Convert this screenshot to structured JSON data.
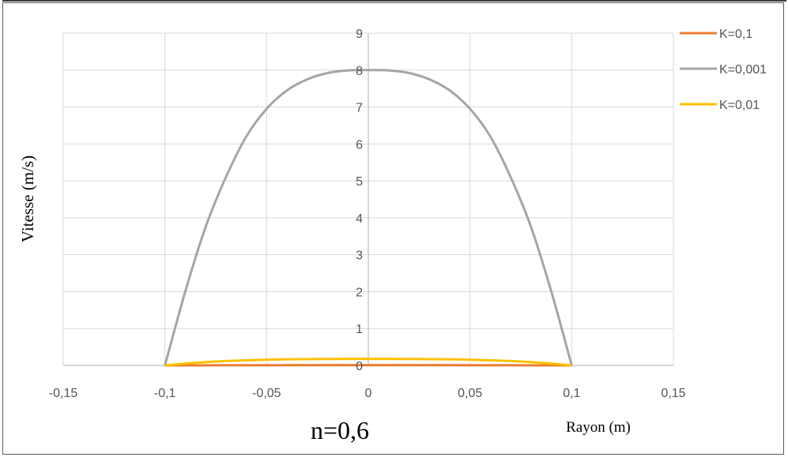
{
  "chart_data": {
    "type": "line",
    "title": "",
    "annotation": "n=0,6",
    "xlabel": "Rayon (m)",
    "ylabel": "Vitesse (m/s)",
    "xlim": [
      -0.15,
      0.15
    ],
    "ylim": [
      0,
      9
    ],
    "x_ticks": [
      -0.15,
      -0.1,
      -0.05,
      0,
      0.05,
      0.1,
      0.15
    ],
    "x_tick_labels": [
      "-0,15",
      "-0,1",
      "-0,05",
      "0",
      "0,05",
      "0,1",
      "0,15"
    ],
    "y_ticks": [
      0,
      1,
      2,
      3,
      4,
      5,
      6,
      7,
      8,
      9
    ],
    "y_tick_labels": [
      "0",
      "1",
      "2",
      "3",
      "4",
      "5",
      "6",
      "7",
      "8",
      "9"
    ],
    "grid": true,
    "legend_position": "top-right",
    "series": [
      {
        "name": "K=0,1",
        "color": "#ED7D31",
        "x": [
          -0.1,
          -0.09,
          -0.08,
          -0.07,
          -0.06,
          -0.05,
          -0.04,
          -0.03,
          -0.02,
          -0.01,
          0,
          0.01,
          0.02,
          0.03,
          0.04,
          0.05,
          0.06,
          0.07,
          0.08,
          0.09,
          0.1
        ],
        "y": [
          0,
          0.003,
          0.004,
          0.005,
          0.006,
          0.006,
          0.007,
          0.007,
          0.007,
          0.007,
          0.007,
          0.007,
          0.007,
          0.007,
          0.007,
          0.006,
          0.006,
          0.005,
          0.004,
          0.003,
          0
        ]
      },
      {
        "name": "K=0,001",
        "color": "#A5A5A5",
        "x": [
          -0.1,
          -0.09,
          -0.08,
          -0.07,
          -0.06,
          -0.05,
          -0.04,
          -0.03,
          -0.02,
          -0.01,
          0,
          0.01,
          0.02,
          0.03,
          0.04,
          0.05,
          0.06,
          0.07,
          0.08,
          0.09,
          0.1
        ],
        "y": [
          0,
          2.0,
          3.75,
          5.1,
          6.2,
          6.95,
          7.45,
          7.75,
          7.92,
          7.99,
          8.0,
          7.99,
          7.92,
          7.75,
          7.45,
          6.95,
          6.2,
          5.1,
          3.75,
          2.0,
          0
        ]
      },
      {
        "name": "K=0,01",
        "color": "#FFC000",
        "x": [
          -0.1,
          -0.09,
          -0.08,
          -0.07,
          -0.06,
          -0.05,
          -0.04,
          -0.03,
          -0.02,
          -0.01,
          0,
          0.01,
          0.02,
          0.03,
          0.04,
          0.05,
          0.06,
          0.07,
          0.08,
          0.09,
          0.1
        ],
        "y": [
          0,
          0.05,
          0.09,
          0.12,
          0.14,
          0.155,
          0.165,
          0.172,
          0.176,
          0.178,
          0.178,
          0.178,
          0.176,
          0.172,
          0.165,
          0.155,
          0.14,
          0.12,
          0.09,
          0.05,
          0
        ]
      }
    ]
  }
}
